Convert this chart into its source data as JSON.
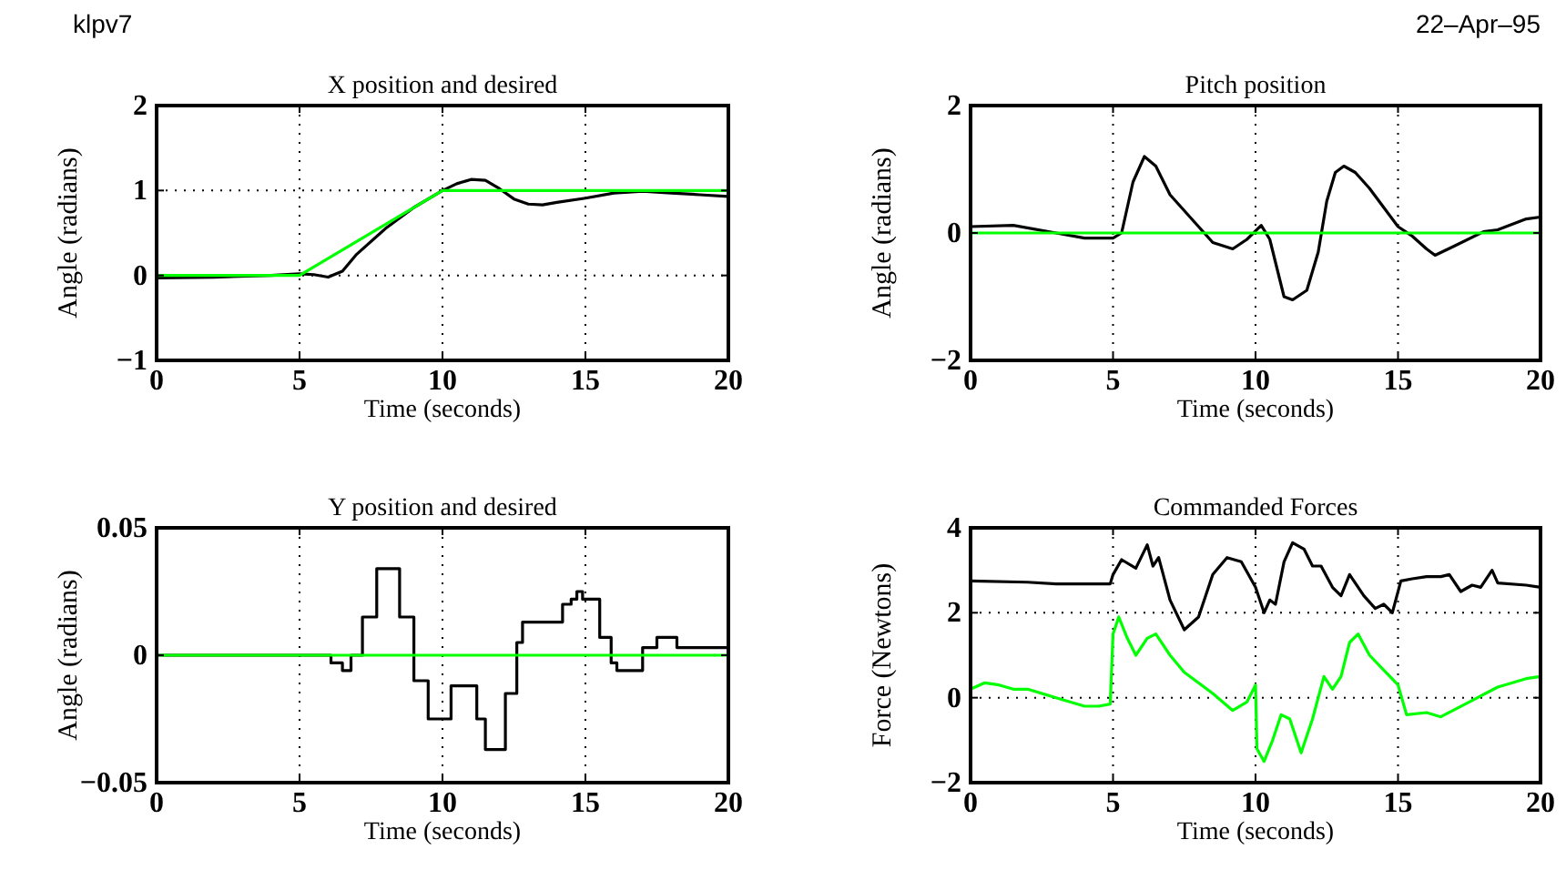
{
  "chart_data": [
    {
      "type": "line",
      "title": "X position and desired",
      "xlabel": "Time (seconds)",
      "ylabel": "Angle (radians)",
      "annotations": [
        "klpv7"
      ],
      "xlim": [
        0,
        20
      ],
      "ylim": [
        -1,
        2
      ],
      "xticks": [
        0,
        5,
        10,
        15,
        20
      ],
      "yticks": [
        {
          "value": -1,
          "label": "−1"
        },
        0,
        1,
        2
      ],
      "grid": true,
      "series": [
        {
          "color": "#000000",
          "x": [
            0,
            2,
            4,
            5,
            5.5,
            6,
            6.5,
            7,
            8,
            9,
            10,
            10.5,
            11,
            11.5,
            12,
            12.5,
            13,
            13.5,
            14,
            15,
            16,
            17,
            18,
            19,
            20
          ],
          "values": [
            -0.03,
            -0.02,
            0,
            0.02,
            0.01,
            -0.02,
            0.05,
            0.25,
            0.55,
            0.8,
            1,
            1.08,
            1.13,
            1.12,
            1.02,
            0.9,
            0.84,
            0.83,
            0.86,
            0.91,
            0.97,
            0.99,
            0.97,
            0.95,
            0.93
          ]
        },
        {
          "color": "#00ff00",
          "x": [
            0,
            5,
            10,
            20
          ],
          "values": [
            0,
            0,
            1,
            1
          ]
        }
      ]
    },
    {
      "type": "line",
      "title": "Pitch position",
      "xlabel": "Time (seconds)",
      "ylabel": "Angle (radians)",
      "annotations": [
        "22–Apr–95"
      ],
      "xlim": [
        0,
        20
      ],
      "ylim": [
        -2,
        2
      ],
      "xticks": [
        0,
        5,
        10,
        15,
        20
      ],
      "yticks": [
        {
          "value": -2,
          "label": "−2"
        },
        0,
        2
      ],
      "grid": true,
      "series": [
        {
          "color": "#000000",
          "x": [
            0,
            1.5,
            3,
            4,
            5,
            5.3,
            5.7,
            6.1,
            6.5,
            7,
            8,
            8.5,
            9.2,
            9.7,
            10.2,
            10.5,
            11,
            11.3,
            11.8,
            12.2,
            12.5,
            12.8,
            13.1,
            13.5,
            14,
            14.5,
            15,
            15.5,
            16,
            16.3,
            17,
            18,
            18.5,
            19.5,
            20
          ],
          "values": [
            0.1,
            0.12,
            0,
            -0.08,
            -0.08,
            0,
            0.8,
            1.2,
            1.05,
            0.6,
            0.1,
            -0.15,
            -0.25,
            -0.1,
            0.12,
            -0.1,
            -1,
            -1.05,
            -0.9,
            -0.3,
            0.5,
            0.95,
            1.05,
            0.95,
            0.7,
            0.4,
            0.1,
            -0.05,
            -0.25,
            -0.35,
            -0.2,
            0.02,
            0.05,
            0.22,
            0.25
          ]
        },
        {
          "color": "#00ff00",
          "x": [
            0,
            20
          ],
          "values": [
            0,
            0
          ]
        }
      ]
    },
    {
      "type": "step",
      "title": "Y position and desired",
      "xlabel": "Time (seconds)",
      "ylabel": "Angle (radians)",
      "xlim": [
        0,
        20
      ],
      "ylim": [
        -0.05,
        0.05
      ],
      "xticks": [
        0,
        5,
        10,
        15,
        20
      ],
      "yticks": [
        {
          "value": -0.05,
          "label": "−0.05"
        },
        0,
        0.05
      ],
      "grid": true,
      "series": [
        {
          "color": "#000000",
          "x": [
            0,
            6.1,
            6.5,
            6.8,
            7.2,
            7.7,
            8,
            8.5,
            9,
            9.5,
            9.9,
            10.3,
            10.8,
            11.2,
            11.5,
            11.8,
            12.2,
            12.6,
            12.8,
            13.9,
            14.2,
            14.5,
            14.7,
            14.9,
            15.5,
            15.9,
            16.1,
            16.6,
            17,
            17.5,
            18,
            18.2,
            20
          ],
          "values": [
            0,
            -0.003,
            -0.006,
            0,
            0.015,
            0.034,
            0.034,
            0.015,
            -0.01,
            -0.025,
            -0.025,
            -0.012,
            -0.012,
            -0.025,
            -0.037,
            -0.037,
            -0.015,
            0.005,
            0.013,
            0.013,
            0.02,
            0.022,
            0.025,
            0.022,
            0.007,
            -0.003,
            -0.006,
            -0.006,
            0.003,
            0.007,
            0.007,
            0.003,
            0.003
          ]
        },
        {
          "color": "#00ff00",
          "x": [
            0,
            20
          ],
          "values": [
            0,
            0
          ]
        }
      ]
    },
    {
      "type": "line",
      "title": "Commanded Forces",
      "xlabel": "Time (seconds)",
      "ylabel": "Force (Newtons)",
      "xlim": [
        0,
        20
      ],
      "ylim": [
        -2,
        4
      ],
      "xticks": [
        0,
        5,
        10,
        15,
        20
      ],
      "yticks": [
        {
          "value": -2,
          "label": "−2"
        },
        0,
        2,
        4
      ],
      "grid": true,
      "series": [
        {
          "color": "#000000",
          "x": [
            0,
            2,
            3,
            4.9,
            5,
            5.3,
            5.8,
            6.2,
            6.4,
            6.6,
            7,
            7.5,
            8,
            8.5,
            9,
            9.5,
            10,
            10.3,
            10.5,
            10.7,
            11,
            11.3,
            11.7,
            12,
            12.3,
            12.7,
            13,
            13.3,
            13.8,
            14.2,
            14.5,
            14.8,
            15.1,
            15.5,
            16,
            16.5,
            16.8,
            17.2,
            17.6,
            17.9,
            18.3,
            18.5,
            19.5,
            20
          ],
          "values": [
            2.75,
            2.72,
            2.68,
            2.68,
            2.9,
            3.25,
            3.05,
            3.6,
            3.1,
            3.3,
            2.3,
            1.6,
            1.9,
            2.9,
            3.3,
            3.2,
            2.6,
            2,
            2.3,
            2.2,
            3.2,
            3.65,
            3.5,
            3.1,
            3.1,
            2.6,
            2.4,
            2.9,
            2.4,
            2.1,
            2.2,
            2,
            2.75,
            2.8,
            2.85,
            2.85,
            2.9,
            2.5,
            2.65,
            2.6,
            3,
            2.7,
            2.65,
            2.6
          ]
        },
        {
          "color": "#00ff00",
          "x": [
            0,
            0.5,
            1,
            1.5,
            2,
            3,
            4,
            4.5,
            4.9,
            5,
            5.2,
            5.5,
            5.8,
            6.2,
            6.5,
            7,
            7.5,
            8.5,
            9.2,
            9.7,
            10,
            10.05,
            10.3,
            10.6,
            10.9,
            11.2,
            11.6,
            12,
            12.4,
            12.7,
            13,
            13.3,
            13.6,
            14,
            14.5,
            15,
            15.3,
            16,
            16.5,
            17.5,
            18.5,
            19.5,
            20
          ],
          "values": [
            0.2,
            0.35,
            0.3,
            0.2,
            0.2,
            0,
            -0.2,
            -0.2,
            -0.15,
            1.5,
            1.9,
            1.4,
            1,
            1.4,
            1.5,
            1,
            0.6,
            0.1,
            -0.3,
            -0.1,
            0.3,
            -1.2,
            -1.5,
            -1,
            -0.4,
            -0.5,
            -1.3,
            -0.5,
            0.5,
            0.2,
            0.5,
            1.3,
            1.5,
            1,
            0.65,
            0.3,
            -0.4,
            -0.35,
            -0.45,
            -0.1,
            0.25,
            0.45,
            0.5
          ]
        }
      ]
    }
  ]
}
